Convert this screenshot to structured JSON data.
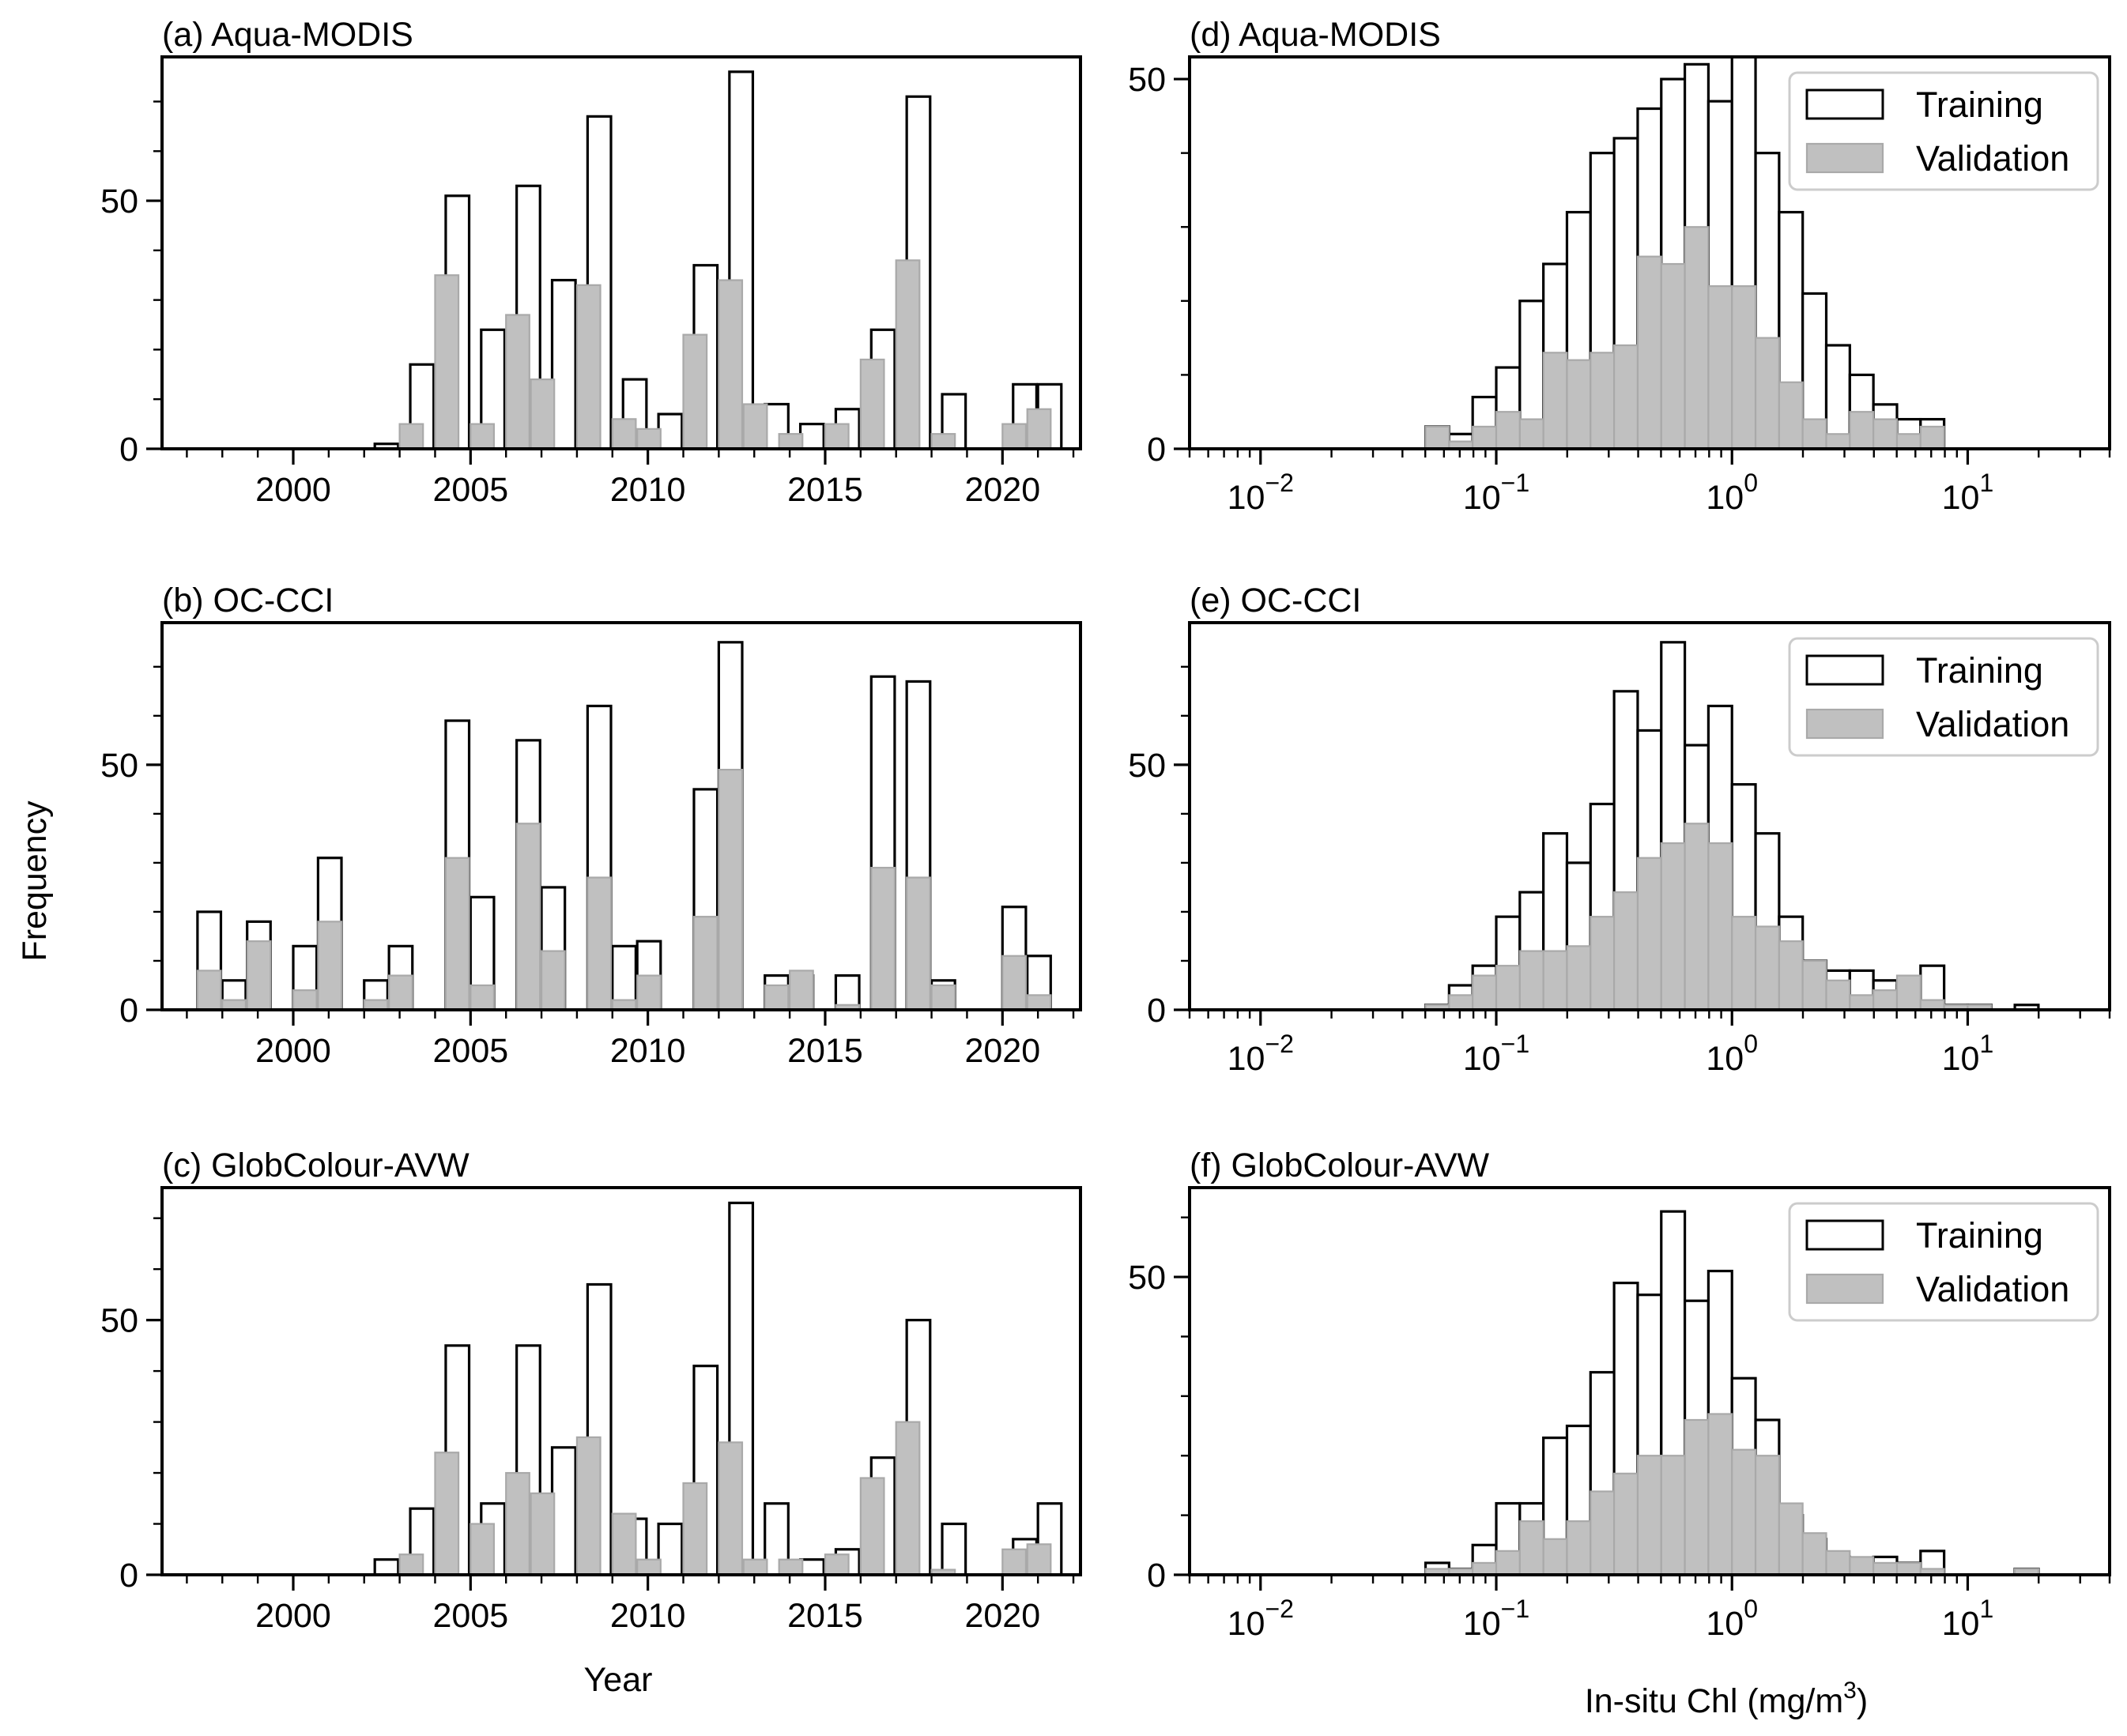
{
  "figure": {
    "ylabel": "Frequency",
    "xlabel_left": "Year",
    "xlabel_right": "In-situ Chl (mg/m",
    "xlabel_right_sup": "3",
    "xlabel_right_close": ")"
  },
  "legend": {
    "training": "Training",
    "validation": "Validation"
  },
  "colors": {
    "training_fill": "#ffffff",
    "training_edge": "#000000",
    "validation_fill": "#c0c0c0",
    "validation_edge": "#a9a9a9",
    "axes": "#000000",
    "legend_frame": "#cccccc"
  },
  "chart_data": [
    {
      "id": "a",
      "type": "bar",
      "title": "(a) Aqua-MODIS",
      "xlabel": "",
      "ylabel": "Frequency",
      "xlim": [
        1996.3,
        2022.2
      ],
      "ylim": [
        0,
        79
      ],
      "xticks": [
        2000,
        2005,
        2010,
        2015,
        2020
      ],
      "xtick_labels": [
        "2000",
        "2005",
        "2010",
        "2015",
        "2020"
      ],
      "yticks": [
        0,
        50
      ],
      "ytick_labels": [
        "0",
        "50"
      ],
      "bin_width": 0.66,
      "series": [
        {
          "name": "Training",
          "x": [
            2002.3,
            2003.3,
            2004.3,
            2005.3,
            2006.3,
            2007.3,
            2008.3,
            2009.3,
            2010.3,
            2011.3,
            2012.3,
            2013.3,
            2014.3,
            2015.3,
            2016.3,
            2017.3,
            2018.3,
            2020.3,
            2021.0
          ],
          "values": [
            1,
            17,
            51,
            24,
            53,
            34,
            67,
            14,
            7,
            37,
            76,
            9,
            5,
            8,
            24,
            71,
            11,
            13,
            13
          ]
        },
        {
          "name": "Validation",
          "x": [
            2003.0,
            2004.0,
            2005.0,
            2006.0,
            2006.7,
            2008.0,
            2009.0,
            2009.7,
            2011.0,
            2012.0,
            2012.7,
            2013.7,
            2015.0,
            2016.0,
            2017.0,
            2018.0,
            2020.0,
            2020.7
          ],
          "values": [
            5,
            35,
            5,
            27,
            14,
            33,
            6,
            4,
            23,
            34,
            9,
            3,
            5,
            18,
            38,
            3,
            5,
            8
          ]
        }
      ]
    },
    {
      "id": "b",
      "type": "bar",
      "title": "(b) OC-CCI",
      "xlabel": "",
      "ylabel": "Frequency",
      "xlim": [
        1996.3,
        2022.2
      ],
      "ylim": [
        0,
        79
      ],
      "xticks": [
        2000,
        2005,
        2010,
        2015,
        2020
      ],
      "xtick_labels": [
        "2000",
        "2005",
        "2010",
        "2015",
        "2020"
      ],
      "yticks": [
        0,
        50
      ],
      "ytick_labels": [
        "0",
        "50"
      ],
      "bin_width": 0.66,
      "series": [
        {
          "name": "Training",
          "x": [
            1997.3,
            1998.0,
            1998.7,
            2000.0,
            2000.7,
            2002.0,
            2002.7,
            2004.3,
            2005.0,
            2006.3,
            2007.0,
            2008.3,
            2009.0,
            2009.7,
            2011.3,
            2012.0,
            2013.3,
            2014.0,
            2015.3,
            2016.3,
            2017.3,
            2018.0,
            2020.0,
            2020.7
          ],
          "values": [
            20,
            6,
            18,
            13,
            31,
            6,
            13,
            59,
            23,
            55,
            25,
            62,
            13,
            14,
            45,
            75,
            7,
            7,
            7,
            68,
            67,
            6,
            21,
            11
          ]
        },
        {
          "name": "Validation",
          "x": [
            1997.3,
            1998.0,
            1998.7,
            2000.0,
            2000.7,
            2002.0,
            2002.7,
            2004.3,
            2005.0,
            2006.3,
            2007.0,
            2008.3,
            2009.0,
            2009.7,
            2011.3,
            2012.0,
            2013.3,
            2014.0,
            2015.3,
            2016.3,
            2017.3,
            2018.0,
            2020.0,
            2020.7
          ],
          "values": [
            8,
            2,
            14,
            4,
            18,
            2,
            7,
            31,
            5,
            38,
            12,
            27,
            2,
            7,
            19,
            49,
            5,
            8,
            1,
            29,
            27,
            5,
            11,
            3
          ]
        }
      ]
    },
    {
      "id": "c",
      "type": "bar",
      "title": "(c) GlobColour-AVW",
      "xlabel": "Year",
      "ylabel": "Frequency",
      "xlim": [
        1996.3,
        2022.2
      ],
      "ylim": [
        0,
        76
      ],
      "xticks": [
        2000,
        2005,
        2010,
        2015,
        2020
      ],
      "xtick_labels": [
        "2000",
        "2005",
        "2010",
        "2015",
        "2020"
      ],
      "yticks": [
        0,
        50
      ],
      "ytick_labels": [
        "0",
        "50"
      ],
      "bin_width": 0.66,
      "series": [
        {
          "name": "Training",
          "x": [
            2002.3,
            2003.3,
            2004.3,
            2005.3,
            2006.3,
            2007.3,
            2008.3,
            2009.3,
            2010.3,
            2011.3,
            2012.3,
            2013.3,
            2014.3,
            2015.3,
            2016.3,
            2017.3,
            2018.3,
            2020.3,
            2021.0
          ],
          "values": [
            3,
            13,
            45,
            14,
            45,
            25,
            57,
            11,
            10,
            41,
            73,
            14,
            3,
            5,
            23,
            50,
            10,
            7,
            14
          ]
        },
        {
          "name": "Validation",
          "x": [
            2003.0,
            2004.0,
            2005.0,
            2006.0,
            2006.7,
            2008.0,
            2009.0,
            2009.7,
            2011.0,
            2012.0,
            2012.7,
            2013.7,
            2015.0,
            2016.0,
            2017.0,
            2018.0,
            2020.0,
            2020.7
          ],
          "values": [
            4,
            24,
            10,
            20,
            16,
            27,
            12,
            3,
            18,
            26,
            3,
            3,
            4,
            19,
            30,
            1,
            5,
            6
          ]
        }
      ]
    },
    {
      "id": "d",
      "type": "bar",
      "title": "(d) Aqua-MODIS",
      "xlabel": "",
      "ylabel": "",
      "xscale": "log",
      "xlim": [
        0.005,
        40
      ],
      "ylim": [
        0,
        53
      ],
      "xtick_labels": [
        {
          "value": 0.01,
          "base": "10",
          "exp": "−2"
        },
        {
          "value": 0.1,
          "base": "10",
          "exp": "−1"
        },
        {
          "value": 1,
          "base": "10",
          "exp": "0"
        },
        {
          "value": 10,
          "base": "10",
          "exp": "1"
        }
      ],
      "yticks": [
        0,
        50
      ],
      "ytick_labels": [
        "0",
        "50"
      ],
      "legend": "top-right",
      "series": [
        {
          "name": "Training",
          "log10_bin_start": [
            -1.3,
            -1.2,
            -1.1,
            -1.0,
            -0.9,
            -0.8,
            -0.7,
            -0.6,
            -0.5,
            -0.4,
            -0.3,
            -0.2,
            -0.1,
            0.0,
            0.1,
            0.2,
            0.3,
            0.4,
            0.5,
            0.6,
            0.7,
            0.8
          ],
          "values": [
            3,
            2,
            7,
            11,
            20,
            25,
            32,
            40,
            42,
            46,
            50,
            52,
            47,
            53,
            40,
            32,
            21,
            14,
            10,
            6,
            4,
            4
          ]
        },
        {
          "name": "Validation",
          "log10_bin_start": [
            -1.3,
            -1.2,
            -1.1,
            -1.0,
            -0.9,
            -0.8,
            -0.7,
            -0.6,
            -0.5,
            -0.4,
            -0.3,
            -0.2,
            -0.1,
            0.0,
            0.1,
            0.2,
            0.3,
            0.4,
            0.5,
            0.6,
            0.7,
            0.8
          ],
          "values": [
            3,
            1,
            3,
            5,
            4,
            13,
            12,
            13,
            14,
            26,
            25,
            30,
            22,
            22,
            15,
            9,
            4,
            2,
            5,
            4,
            2,
            3
          ]
        }
      ]
    },
    {
      "id": "e",
      "type": "bar",
      "title": "(e) OC-CCI",
      "xlabel": "",
      "ylabel": "",
      "xscale": "log",
      "xlim": [
        0.005,
        40
      ],
      "ylim": [
        0,
        79
      ],
      "xtick_labels": [
        {
          "value": 0.01,
          "base": "10",
          "exp": "−2"
        },
        {
          "value": 0.1,
          "base": "10",
          "exp": "−1"
        },
        {
          "value": 1,
          "base": "10",
          "exp": "0"
        },
        {
          "value": 10,
          "base": "10",
          "exp": "1"
        }
      ],
      "yticks": [
        0,
        50
      ],
      "ytick_labels": [
        "0",
        "50"
      ],
      "legend": "top-right",
      "series": [
        {
          "name": "Training",
          "log10_bin_start": [
            -1.3,
            -1.2,
            -1.1,
            -1.0,
            -0.9,
            -0.8,
            -0.7,
            -0.6,
            -0.5,
            -0.4,
            -0.3,
            -0.2,
            -0.1,
            0.0,
            0.1,
            0.2,
            0.3,
            0.4,
            0.5,
            0.6,
            0.7,
            0.8,
            0.9,
            1.0,
            1.2
          ],
          "values": [
            1,
            5,
            9,
            19,
            24,
            36,
            30,
            42,
            65,
            57,
            75,
            54,
            62,
            46,
            36,
            19,
            10,
            8,
            8,
            6,
            5,
            9,
            1,
            1,
            1
          ]
        },
        {
          "name": "Validation",
          "log10_bin_start": [
            -1.3,
            -1.2,
            -1.1,
            -1.0,
            -0.9,
            -0.8,
            -0.7,
            -0.6,
            -0.5,
            -0.4,
            -0.3,
            -0.2,
            -0.1,
            0.0,
            0.1,
            0.2,
            0.3,
            0.4,
            0.5,
            0.6,
            0.7,
            0.8,
            0.9,
            1.0,
            1.2
          ],
          "values": [
            1,
            3,
            7,
            9,
            12,
            12,
            13,
            19,
            24,
            31,
            34,
            38,
            34,
            19,
            17,
            14,
            10,
            6,
            3,
            4,
            7,
            2,
            1,
            1,
            0
          ]
        }
      ]
    },
    {
      "id": "f",
      "type": "bar",
      "title": "(f) GlobColour-AVW",
      "xlabel": "In-situ Chl (mg/m3)",
      "ylabel": "",
      "xscale": "log",
      "xlim": [
        0.005,
        40
      ],
      "ylim": [
        0,
        65
      ],
      "xtick_labels": [
        {
          "value": 0.01,
          "base": "10",
          "exp": "−2"
        },
        {
          "value": 0.1,
          "base": "10",
          "exp": "−1"
        },
        {
          "value": 1,
          "base": "10",
          "exp": "0"
        },
        {
          "value": 10,
          "base": "10",
          "exp": "1"
        }
      ],
      "yticks": [
        0,
        50
      ],
      "ytick_labels": [
        "0",
        "50"
      ],
      "legend": "top-right",
      "series": [
        {
          "name": "Training",
          "log10_bin_start": [
            -1.3,
            -1.2,
            -1.1,
            -1.0,
            -0.9,
            -0.8,
            -0.7,
            -0.6,
            -0.5,
            -0.4,
            -0.3,
            -0.2,
            -0.1,
            0.0,
            0.1,
            0.2,
            0.3,
            0.4,
            0.5,
            0.6,
            0.7,
            0.8,
            1.2
          ],
          "values": [
            2,
            1,
            5,
            12,
            12,
            23,
            25,
            34,
            49,
            47,
            61,
            46,
            51,
            33,
            26,
            10,
            6,
            3,
            1,
            3,
            2,
            4,
            1
          ]
        },
        {
          "name": "Validation",
          "log10_bin_start": [
            -1.3,
            -1.2,
            -1.1,
            -1.0,
            -0.9,
            -0.8,
            -0.7,
            -0.6,
            -0.5,
            -0.4,
            -0.3,
            -0.2,
            -0.1,
            0.0,
            0.1,
            0.2,
            0.3,
            0.4,
            0.5,
            0.6,
            0.7,
            0.8,
            1.2
          ],
          "values": [
            1,
            1,
            2,
            4,
            9,
            6,
            9,
            14,
            17,
            20,
            20,
            26,
            27,
            21,
            20,
            12,
            7,
            4,
            3,
            2,
            2,
            1,
            1
          ]
        }
      ]
    }
  ]
}
